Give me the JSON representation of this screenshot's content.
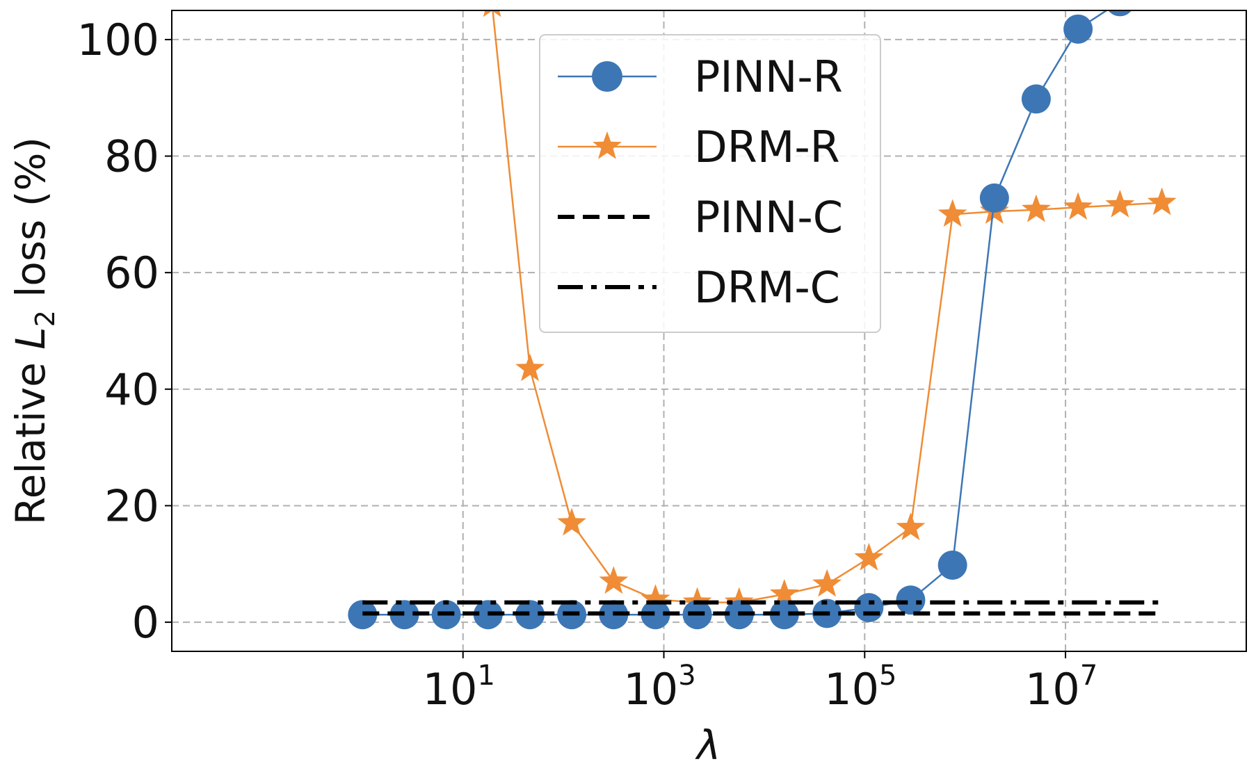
{
  "chart_data": {
    "type": "line",
    "xscale": "log10",
    "xlim_exp": [
      -1.9,
      8.8
    ],
    "ylim": [
      -5,
      105
    ],
    "grid": true,
    "legend_position": "top-center",
    "xlabel": "λ",
    "ylabel": {
      "prefix": "Relative ",
      "var": "L",
      "sub": "2",
      "suffix": " loss (%)"
    },
    "x_ticks": [
      {
        "exp": 1,
        "base": "10",
        "sup": "1"
      },
      {
        "exp": 3,
        "base": "10",
        "sup": "3"
      },
      {
        "exp": 5,
        "base": "10",
        "sup": "5"
      },
      {
        "exp": 7,
        "base": "10",
        "sup": "7"
      }
    ],
    "y_ticks": [
      {
        "value": 0,
        "label": "0"
      },
      {
        "value": 20,
        "label": "20"
      },
      {
        "value": 40,
        "label": "40"
      },
      {
        "value": 60,
        "label": "60"
      },
      {
        "value": 80,
        "label": "80"
      },
      {
        "value": 100,
        "label": "100"
      }
    ],
    "series": [
      {
        "name": "PINN-R",
        "color": "#3d76b5",
        "marker": "circle",
        "style": "solid",
        "points": [
          [
            0.0,
            1.3
          ],
          [
            0.417,
            1.3
          ],
          [
            0.833,
            1.3
          ],
          [
            1.25,
            1.3
          ],
          [
            1.667,
            1.3
          ],
          [
            2.083,
            1.3
          ],
          [
            2.5,
            1.3
          ],
          [
            2.917,
            1.3
          ],
          [
            3.333,
            1.3
          ],
          [
            3.75,
            1.3
          ],
          [
            4.2,
            1.3
          ],
          [
            4.625,
            1.5
          ],
          [
            5.042,
            2.5
          ],
          [
            5.458,
            3.8
          ],
          [
            5.875,
            9.8
          ],
          [
            6.292,
            72.8
          ],
          [
            6.708,
            89.8
          ],
          [
            7.125,
            101.8
          ],
          [
            7.542,
            106.5
          ]
        ]
      },
      {
        "name": "DRM-R",
        "color": "#ef8c35",
        "marker": "star",
        "style": "solid",
        "points": [
          [
            1.29,
            106
          ],
          [
            1.667,
            43.5
          ],
          [
            2.083,
            17.0
          ],
          [
            2.5,
            7.0
          ],
          [
            2.917,
            3.9
          ],
          [
            3.333,
            3.4
          ],
          [
            3.75,
            3.4
          ],
          [
            4.2,
            4.8
          ],
          [
            4.625,
            6.5
          ],
          [
            5.042,
            11.0
          ],
          [
            5.458,
            16.2
          ],
          [
            5.875,
            70.0
          ],
          [
            6.292,
            70.5
          ],
          [
            6.708,
            70.8
          ],
          [
            7.125,
            71.2
          ],
          [
            7.542,
            71.6
          ],
          [
            7.96,
            72.0
          ]
        ]
      },
      {
        "name": "PINN-C",
        "color": "#000000",
        "marker": "none",
        "style": "dashed",
        "points": [
          [
            0.0,
            1.5
          ],
          [
            7.96,
            1.5
          ]
        ]
      },
      {
        "name": "DRM-C",
        "color": "#000000",
        "marker": "none",
        "style": "dashdot",
        "points": [
          [
            0.0,
            3.4
          ],
          [
            7.96,
            3.4
          ]
        ]
      }
    ]
  }
}
